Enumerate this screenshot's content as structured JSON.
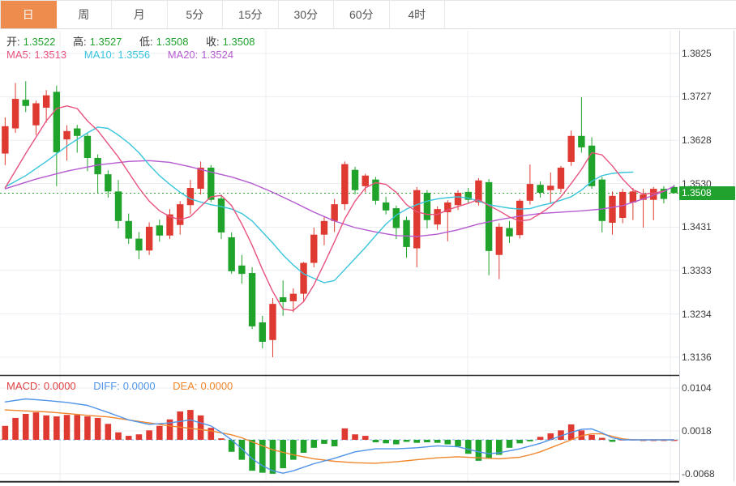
{
  "tabs": [
    {
      "label": "日",
      "active": true
    },
    {
      "label": "周",
      "active": false
    },
    {
      "label": "月",
      "active": false
    },
    {
      "label": "5分",
      "active": false
    },
    {
      "label": "15分",
      "active": false
    },
    {
      "label": "30分",
      "active": false
    },
    {
      "label": "60分",
      "active": false
    },
    {
      "label": "4时",
      "active": false
    }
  ],
  "info": {
    "open_label": "开:",
    "open_value": "1.3522",
    "high_label": "高:",
    "high_value": "1.3527",
    "low_label": "低:",
    "low_value": "1.3508",
    "close_label": "收:",
    "close_value": "1.3508",
    "ma5_label": "MA5:",
    "ma5_value": "1.3513",
    "ma10_label": "MA10:",
    "ma10_value": "1.3556",
    "ma20_label": "MA20:",
    "ma20_value": "1.3524"
  },
  "macd_info": {
    "macd_label": "MACD:",
    "macd_value": "0.0000",
    "diff_label": "DIFF:",
    "diff_value": "0.0000",
    "dea_label": "DEA:",
    "dea_value": "0.0000"
  },
  "colors": {
    "up": "#df3a32",
    "down": "#1fa32b",
    "ma5": "#e8527e",
    "ma10": "#38c5dc",
    "ma20": "#b55ad0",
    "diff_line": "#4f94e8",
    "dea_line": "#f0862c",
    "grid": "#ebedf1",
    "frame": "#cfd4da",
    "separator": "#2e2e2e",
    "dotted_price": "#2fa32f",
    "badge_bg": "#21a12e",
    "zero_dash": "#7fb0e8",
    "active_tab": "#ee8c4e"
  },
  "chart_data": {
    "type": "candlestick",
    "title": "",
    "legend": [
      "MA5",
      "MA10",
      "MA20",
      "MACD",
      "DIFF",
      "DEA"
    ],
    "price_ticks": [
      1.3825,
      1.3727,
      1.3628,
      1.353,
      1.3431,
      1.3333,
      1.3234,
      1.3136
    ],
    "price_range": [
      1.3136,
      1.3825
    ],
    "current_price": 1.3508,
    "candles": [
      [
        1.3598,
        1.368,
        1.3572,
        1.366
      ],
      [
        1.3655,
        1.3758,
        1.3645,
        1.3722
      ],
      [
        1.372,
        1.3762,
        1.3692,
        1.3706
      ],
      [
        1.3662,
        1.3718,
        1.364,
        1.3712
      ],
      [
        1.3702,
        1.3742,
        1.3668,
        1.373
      ],
      [
        1.3738,
        1.3752,
        1.3524,
        1.3601
      ],
      [
        1.363,
        1.3662,
        1.3582,
        1.3649
      ],
      [
        1.3655,
        1.3663,
        1.36,
        1.3638
      ],
      [
        1.3638,
        1.3645,
        1.3558,
        1.3588
      ],
      [
        1.3588,
        1.3596,
        1.3508,
        1.3551
      ],
      [
        1.3551,
        1.356,
        1.3498,
        1.3512
      ],
      [
        1.3512,
        1.3538,
        1.3428,
        1.3445
      ],
      [
        1.3445,
        1.3462,
        1.3393,
        1.3405
      ],
      [
        1.3405,
        1.342,
        1.3358,
        1.3378
      ],
      [
        1.3378,
        1.3442,
        1.3368,
        1.3432
      ],
      [
        1.3435,
        1.3448,
        1.3398,
        1.3412
      ],
      [
        1.3412,
        1.3472,
        1.3404,
        1.346
      ],
      [
        1.3436,
        1.349,
        1.3414,
        1.3483
      ],
      [
        1.3481,
        1.3538,
        1.346,
        1.352
      ],
      [
        1.3518,
        1.358,
        1.3505,
        1.3566
      ],
      [
        1.3566,
        1.3572,
        1.3488,
        1.3493
      ],
      [
        1.3496,
        1.3505,
        1.3404,
        1.3419
      ],
      [
        1.3408,
        1.3419,
        1.3325,
        1.3331
      ],
      [
        1.3344,
        1.3368,
        1.3303,
        1.3325
      ],
      [
        1.3327,
        1.334,
        1.32,
        1.3206
      ],
      [
        1.3215,
        1.323,
        1.3156,
        1.3171
      ],
      [
        1.3175,
        1.327,
        1.3136,
        1.3257
      ],
      [
        1.3272,
        1.331,
        1.323,
        1.3261
      ],
      [
        1.3263,
        1.3292,
        1.3238,
        1.328
      ],
      [
        1.328,
        1.3352,
        1.3262,
        1.335
      ],
      [
        1.335,
        1.343,
        1.334,
        1.3414
      ],
      [
        1.3414,
        1.3455,
        1.339,
        1.3445
      ],
      [
        1.3445,
        1.3495,
        1.342,
        1.3483
      ],
      [
        1.3483,
        1.358,
        1.347,
        1.3574
      ],
      [
        1.3561,
        1.3568,
        1.3505,
        1.3515
      ],
      [
        1.3524,
        1.3552,
        1.351,
        1.3548
      ],
      [
        1.3539,
        1.3545,
        1.3482,
        1.3491
      ],
      [
        1.3487,
        1.35,
        1.346,
        1.3469
      ],
      [
        1.3474,
        1.348,
        1.3404,
        1.3429
      ],
      [
        1.3447,
        1.3455,
        1.3362,
        1.3386
      ],
      [
        1.3383,
        1.3522,
        1.334,
        1.3515
      ],
      [
        1.3509,
        1.3515,
        1.3428,
        1.3447
      ],
      [
        1.3437,
        1.3478,
        1.3425,
        1.3472
      ],
      [
        1.3465,
        1.3492,
        1.3399,
        1.3487
      ],
      [
        1.3481,
        1.3515,
        1.347,
        1.3509
      ],
      [
        1.3511,
        1.352,
        1.3485,
        1.3493
      ],
      [
        1.3487,
        1.3542,
        1.348,
        1.3537
      ],
      [
        1.3533,
        1.354,
        1.3322,
        1.3377
      ],
      [
        1.3368,
        1.344,
        1.3313,
        1.3432
      ],
      [
        1.3429,
        1.3445,
        1.3395,
        1.341
      ],
      [
        1.3413,
        1.3495,
        1.3405,
        1.3491
      ],
      [
        1.3491,
        1.3573,
        1.3482,
        1.3529
      ],
      [
        1.3527,
        1.3535,
        1.3498,
        1.3509
      ],
      [
        1.3515,
        1.3555,
        1.3485,
        1.3525
      ],
      [
        1.3518,
        1.357,
        1.351,
        1.3566
      ],
      [
        1.3579,
        1.365,
        1.357,
        1.3638
      ],
      [
        1.3638,
        1.3726,
        1.36,
        1.3612
      ],
      [
        1.3616,
        1.3635,
        1.3518,
        1.3524
      ],
      [
        1.3539,
        1.3545,
        1.3419,
        1.3445
      ],
      [
        1.3441,
        1.3512,
        1.3414,
        1.3502
      ],
      [
        1.3452,
        1.3518,
        1.344,
        1.3511
      ],
      [
        1.3487,
        1.352,
        1.3447,
        1.3512
      ],
      [
        1.3493,
        1.3518,
        1.343,
        1.3505
      ],
      [
        1.3493,
        1.3522,
        1.3447,
        1.3518
      ],
      [
        1.3518,
        1.3524,
        1.3485,
        1.3495
      ],
      [
        1.3522,
        1.3527,
        1.3508,
        1.3508
      ]
    ],
    "ma5_points": [
      [
        0,
        1.352
      ],
      [
        2,
        1.3598
      ],
      [
        4,
        1.3672
      ],
      [
        5,
        1.37
      ],
      [
        6,
        1.3706
      ],
      [
        7,
        1.37
      ],
      [
        8,
        1.3672
      ],
      [
        9,
        1.365
      ],
      [
        10,
        1.362
      ],
      [
        11,
        1.359
      ],
      [
        12,
        1.3555
      ],
      [
        13,
        1.352
      ],
      [
        14,
        1.349
      ],
      [
        15,
        1.3468
      ],
      [
        16,
        1.3455
      ],
      [
        17,
        1.3448
      ],
      [
        18,
        1.3455
      ],
      [
        19,
        1.3478
      ],
      [
        20,
        1.35
      ],
      [
        21,
        1.3503
      ],
      [
        22,
        1.348
      ],
      [
        23,
        1.3438
      ],
      [
        24,
        1.339
      ],
      [
        25,
        1.3335
      ],
      [
        26,
        1.3285
      ],
      [
        27,
        1.3245
      ],
      [
        28,
        1.3242
      ],
      [
        29,
        1.3262
      ],
      [
        30,
        1.33
      ],
      [
        31,
        1.3348
      ],
      [
        32,
        1.3398
      ],
      [
        33,
        1.345
      ],
      [
        34,
        1.349
      ],
      [
        35,
        1.352
      ],
      [
        36,
        1.3532
      ],
      [
        37,
        1.3528
      ],
      [
        38,
        1.351
      ],
      [
        39,
        1.3482
      ],
      [
        40,
        1.3466
      ],
      [
        41,
        1.346
      ],
      [
        42,
        1.346
      ],
      [
        43,
        1.347
      ],
      [
        44,
        1.3478
      ],
      [
        45,
        1.3485
      ],
      [
        46,
        1.3494
      ],
      [
        47,
        1.348
      ],
      [
        48,
        1.3468
      ],
      [
        49,
        1.3454
      ],
      [
        50,
        1.3445
      ],
      [
        51,
        1.3448
      ],
      [
        52,
        1.3462
      ],
      [
        53,
        1.3478
      ],
      [
        54,
        1.35
      ],
      [
        55,
        1.353
      ],
      [
        56,
        1.3562
      ],
      [
        57,
        1.36
      ],
      [
        58,
        1.3595
      ],
      [
        59,
        1.357
      ],
      [
        60,
        1.354
      ],
      [
        61,
        1.3516
      ],
      [
        62,
        1.3506
      ],
      [
        63,
        1.3508
      ],
      [
        64,
        1.3513
      ]
    ],
    "ma10_points": [
      [
        0,
        1.3522
      ],
      [
        2,
        1.3548
      ],
      [
        4,
        1.358
      ],
      [
        6,
        1.3615
      ],
      [
        8,
        1.3645
      ],
      [
        9,
        1.3658
      ],
      [
        10,
        1.3655
      ],
      [
        11,
        1.364
      ],
      [
        12,
        1.3622
      ],
      [
        13,
        1.36
      ],
      [
        14,
        1.3572
      ],
      [
        15,
        1.3548
      ],
      [
        16,
        1.3528
      ],
      [
        17,
        1.351
      ],
      [
        18,
        1.3495
      ],
      [
        19,
        1.3488
      ],
      [
        20,
        1.3482
      ],
      [
        21,
        1.3478
      ],
      [
        22,
        1.3472
      ],
      [
        23,
        1.3462
      ],
      [
        24,
        1.3445
      ],
      [
        25,
        1.342
      ],
      [
        26,
        1.3395
      ],
      [
        27,
        1.3368
      ],
      [
        28,
        1.3345
      ],
      [
        29,
        1.3325
      ],
      [
        30,
        1.3315
      ],
      [
        31,
        1.3305
      ],
      [
        32,
        1.331
      ],
      [
        33,
        1.3335
      ],
      [
        34,
        1.336
      ],
      [
        35,
        1.3385
      ],
      [
        36,
        1.3412
      ],
      [
        37,
        1.3438
      ],
      [
        38,
        1.3458
      ],
      [
        39,
        1.3472
      ],
      [
        40,
        1.3482
      ],
      [
        41,
        1.349
      ],
      [
        42,
        1.3495
      ],
      [
        43,
        1.3498
      ],
      [
        44,
        1.35
      ],
      [
        45,
        1.3497
      ],
      [
        46,
        1.349
      ],
      [
        47,
        1.3482
      ],
      [
        48,
        1.3478
      ],
      [
        49,
        1.3474
      ],
      [
        50,
        1.3472
      ],
      [
        51,
        1.3473
      ],
      [
        52,
        1.348
      ],
      [
        53,
        1.3485
      ],
      [
        54,
        1.3492
      ],
      [
        55,
        1.35
      ],
      [
        56,
        1.3515
      ],
      [
        57,
        1.3535
      ],
      [
        58,
        1.3548
      ],
      [
        59,
        1.3553
      ],
      [
        60,
        1.3555
      ],
      [
        61,
        1.3556
      ]
    ],
    "ma20_points": [
      [
        0,
        1.3518
      ],
      [
        3,
        1.354
      ],
      [
        6,
        1.3558
      ],
      [
        9,
        1.3572
      ],
      [
        12,
        1.358
      ],
      [
        14,
        1.3582
      ],
      [
        16,
        1.3578
      ],
      [
        18,
        1.3568
      ],
      [
        20,
        1.3556
      ],
      [
        22,
        1.3545
      ],
      [
        24,
        1.353
      ],
      [
        26,
        1.351
      ],
      [
        28,
        1.3488
      ],
      [
        30,
        1.3465
      ],
      [
        32,
        1.3445
      ],
      [
        34,
        1.343
      ],
      [
        36,
        1.342
      ],
      [
        38,
        1.3412
      ],
      [
        40,
        1.341
      ],
      [
        42,
        1.3415
      ],
      [
        44,
        1.3425
      ],
      [
        46,
        1.3438
      ],
      [
        48,
        1.3448
      ],
      [
        50,
        1.3456
      ],
      [
        52,
        1.3462
      ],
      [
        54,
        1.3465
      ],
      [
        56,
        1.3468
      ],
      [
        58,
        1.3472
      ],
      [
        60,
        1.348
      ],
      [
        62,
        1.3495
      ],
      [
        64,
        1.3512
      ],
      [
        65,
        1.3524
      ]
    ],
    "macd": {
      "ticks": [
        0.0104,
        0.0018,
        -0.0068
      ],
      "range": [
        -0.0068,
        0.0104
      ],
      "histogram": [
        0.0028,
        0.0044,
        0.0052,
        0.0055,
        0.0049,
        0.0047,
        0.005,
        0.005,
        0.0047,
        0.0044,
        0.0032,
        0.0015,
        0.0008,
        0.0011,
        0.0019,
        0.0028,
        0.0041,
        0.0057,
        0.006,
        0.0049,
        0.0024,
        0.0003,
        -0.0024,
        -0.004,
        -0.0062,
        -0.0066,
        -0.0068,
        -0.0057,
        -0.004,
        -0.0026,
        -0.0016,
        -0.0008,
        -0.0013,
        0.0023,
        0.0011,
        0.0008,
        -0.0005,
        -0.0007,
        -0.0009,
        -0.0004,
        -0.0006,
        -0.0005,
        -0.0006,
        -0.0009,
        -0.0013,
        -0.0028,
        -0.0042,
        -0.0038,
        -0.003,
        -0.0016,
        -0.0007,
        -0.0003,
        0.0006,
        0.0013,
        0.0019,
        0.0031,
        0.0019,
        0.001,
        0.0004,
        -0.0004,
        0.0001,
        0.0001,
        0.0,
        0.0,
        0.0,
        0.0
      ],
      "diff_points": [
        [
          0,
          0.0076
        ],
        [
          2,
          0.0082
        ],
        [
          4,
          0.0079
        ],
        [
          6,
          0.0075
        ],
        [
          8,
          0.0069
        ],
        [
          10,
          0.0055
        ],
        [
          12,
          0.004
        ],
        [
          14,
          0.0031
        ],
        [
          16,
          0.0034
        ],
        [
          18,
          0.004
        ],
        [
          20,
          0.0028
        ],
        [
          21,
          0.0015
        ],
        [
          22,
          0.0
        ],
        [
          23,
          -0.0018
        ],
        [
          24,
          -0.0038
        ],
        [
          25,
          -0.0052
        ],
        [
          26,
          -0.0062
        ],
        [
          27,
          -0.0067
        ],
        [
          28,
          -0.0062
        ],
        [
          29,
          -0.0055
        ],
        [
          30,
          -0.0048
        ],
        [
          32,
          -0.0037
        ],
        [
          34,
          -0.0024
        ],
        [
          36,
          -0.0018
        ],
        [
          38,
          -0.0018
        ],
        [
          40,
          -0.0016
        ],
        [
          42,
          -0.0012
        ],
        [
          44,
          -0.0014
        ],
        [
          46,
          -0.0024
        ],
        [
          47,
          -0.0028
        ],
        [
          48,
          -0.0026
        ],
        [
          50,
          -0.0018
        ],
        [
          52,
          -0.0007
        ],
        [
          54,
          0.0008
        ],
        [
          55,
          0.0015
        ],
        [
          56,
          0.0021
        ],
        [
          57,
          0.0022
        ],
        [
          58,
          0.0014
        ],
        [
          59,
          0.0004
        ],
        [
          60,
          0.0
        ],
        [
          65,
          0.0
        ]
      ],
      "dea_points": [
        [
          0,
          0.006
        ],
        [
          2,
          0.0058
        ],
        [
          4,
          0.0056
        ],
        [
          6,
          0.0053
        ],
        [
          8,
          0.0049
        ],
        [
          10,
          0.0046
        ],
        [
          12,
          0.004
        ],
        [
          14,
          0.0034
        ],
        [
          16,
          0.0028
        ],
        [
          18,
          0.0023
        ],
        [
          20,
          0.0018
        ],
        [
          22,
          0.001
        ],
        [
          23,
          0.0004
        ],
        [
          24,
          -0.0004
        ],
        [
          25,
          -0.0012
        ],
        [
          26,
          -0.002
        ],
        [
          28,
          -0.003
        ],
        [
          30,
          -0.0038
        ],
        [
          32,
          -0.0043
        ],
        [
          34,
          -0.0046
        ],
        [
          36,
          -0.0047
        ],
        [
          38,
          -0.0044
        ],
        [
          40,
          -0.004
        ],
        [
          42,
          -0.0036
        ],
        [
          44,
          -0.0034
        ],
        [
          46,
          -0.0036
        ],
        [
          48,
          -0.0038
        ],
        [
          50,
          -0.0035
        ],
        [
          51,
          -0.003
        ],
        [
          52,
          -0.0024
        ],
        [
          53,
          -0.0016
        ],
        [
          54,
          -0.0008
        ],
        [
          55,
          0.0
        ],
        [
          56,
          0.0008
        ],
        [
          57,
          0.0012
        ],
        [
          58,
          0.0012
        ],
        [
          59,
          0.0007
        ],
        [
          60,
          0.0002
        ],
        [
          61,
          0.0
        ],
        [
          65,
          0.0
        ]
      ]
    }
  }
}
